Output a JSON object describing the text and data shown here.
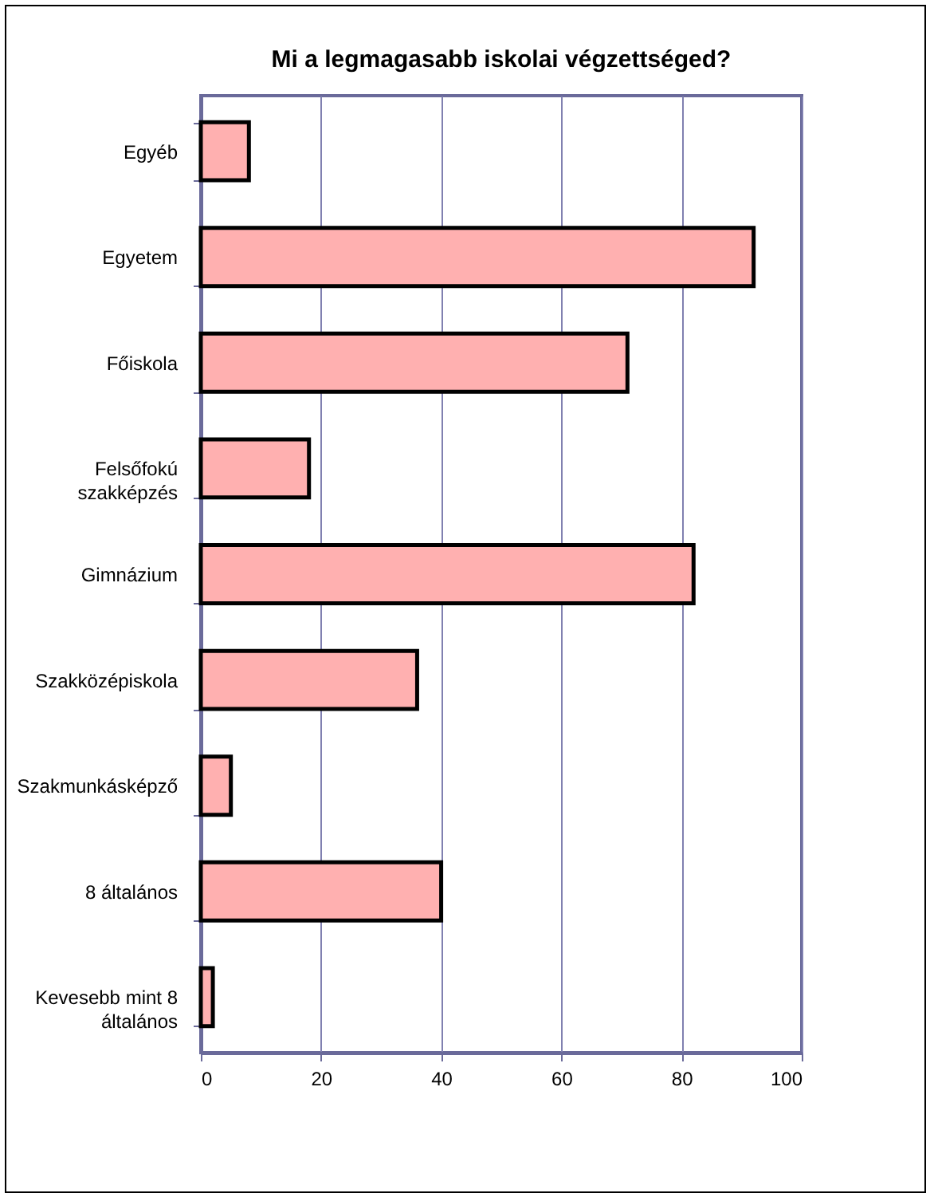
{
  "chart_data": {
    "type": "bar",
    "orientation": "horizontal",
    "title": "Mi a legmagasabb iskolai végzettséged?",
    "categories": [
      "Egyéb",
      "Egyetem",
      "Főiskola",
      "Felsőfokú szakképzés",
      "Gimnázium",
      "Szakközépiskola",
      "Szakmunkásképző",
      "8 általános",
      "Kevesebb mint 8 általános"
    ],
    "values": [
      8,
      92,
      71,
      18,
      82,
      36,
      5,
      40,
      2
    ],
    "color": "#ffb0b0",
    "xlim": [
      0,
      100
    ],
    "xticks": [
      0,
      20,
      40,
      60,
      80,
      100
    ],
    "grid": "x"
  }
}
